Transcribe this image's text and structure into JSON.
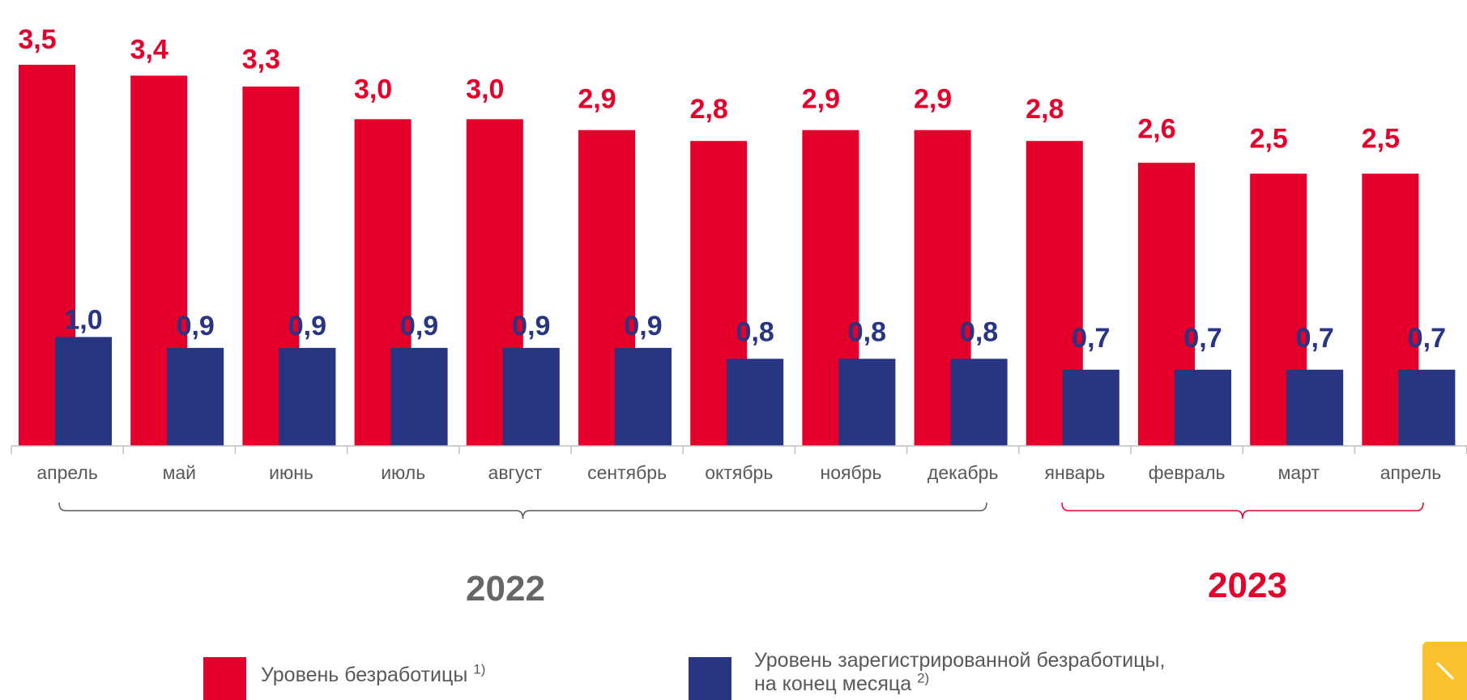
{
  "chart_data": {
    "type": "bar",
    "categories": [
      "апрель",
      "май",
      "июнь",
      "июль",
      "август",
      "сентябрь",
      "октябрь",
      "ноябрь",
      "декабрь",
      "январь",
      "февраль",
      "март",
      "апрель"
    ],
    "series": [
      {
        "name": "Уровень безработицы",
        "name_sup": "1)",
        "color": "#e4002b",
        "values": [
          3.5,
          3.4,
          3.3,
          3.0,
          3.0,
          2.9,
          2.8,
          2.9,
          2.9,
          2.8,
          2.6,
          2.5,
          2.5
        ],
        "labels": [
          "3,5",
          "3,4",
          "3,3",
          "3,0",
          "3,0",
          "2,9",
          "2,8",
          "2,9",
          "2,9",
          "2,8",
          "2,6",
          "2,5",
          "2,5"
        ]
      },
      {
        "name": "Уровень зарегистрированной безработицы,",
        "name_line2": "на конец месяца",
        "name_sup": "2)",
        "color": "#283583",
        "values": [
          1.0,
          0.9,
          0.9,
          0.9,
          0.9,
          0.9,
          0.8,
          0.8,
          0.8,
          0.7,
          0.7,
          0.7,
          0.7
        ],
        "labels": [
          "1,0",
          "0,9",
          "0,9",
          "0,9",
          "0,9",
          "0,9",
          "0,8",
          "0,8",
          "0,8",
          "0,7",
          "0,7",
          "0,7",
          "0,7"
        ]
      }
    ],
    "ylim": [
      0,
      3.5
    ],
    "grid": false,
    "legend_position": "bottom",
    "year_groups": [
      {
        "label": "2022",
        "from": 0,
        "to": 8,
        "color": "#666666"
      },
      {
        "label": "2023",
        "from": 9,
        "to": 12,
        "color": "#e4002b"
      }
    ]
  },
  "colors": {
    "axis": "#bfbfbf",
    "tick_text": "#595959",
    "bracket_2022": "#595959",
    "bracket_2023": "#e4002b",
    "corner_tab": "#fbc02d"
  },
  "icons": {
    "corner": "arrow-diagonal-icon"
  }
}
